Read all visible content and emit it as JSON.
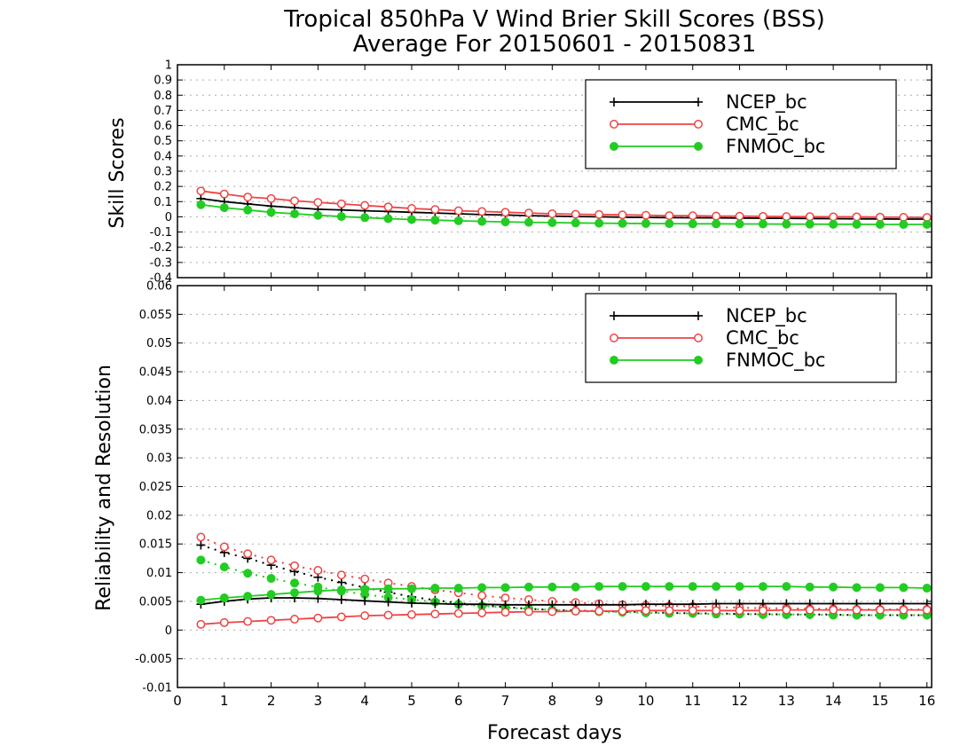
{
  "title_line1": "Tropical 850hPa V Wind Brier Skill Scores (BSS)",
  "title_line2": "Average For 20150601 - 20150831",
  "xlabel": "Forecast days",
  "colors": {
    "NCEP_bc": "#000000",
    "CMC_bc": "#ee4444",
    "FNMOC_bc": "#22cc22"
  },
  "chart_data": [
    {
      "type": "line",
      "title": "Tropical 850hPa V Wind Brier Skill Scores (BSS)",
      "ylabel": "Skill Scores",
      "xlim": [
        0,
        16.1
      ],
      "ylim": [
        -0.4,
        1
      ],
      "grid": true,
      "legend_position": "top-right",
      "x_ticks": [
        "0",
        "1",
        "2",
        "3",
        "4",
        "5",
        "6",
        "7",
        "8",
        "9",
        "10",
        "11",
        "12",
        "13",
        "14",
        "15",
        "16"
      ],
      "y_ticks": [
        "-0.4",
        "-0.3",
        "-0.2",
        "-0.1",
        "0",
        "0.1",
        "0.2",
        "0.3",
        "0.4",
        "0.5",
        "0.6",
        "0.7",
        "0.8",
        "0.9",
        "1"
      ],
      "x": [
        0.5,
        1,
        1.5,
        2,
        2.5,
        3,
        3.5,
        4,
        4.5,
        5,
        5.5,
        6,
        6.5,
        7,
        7.5,
        8,
        8.5,
        9,
        9.5,
        10,
        10.5,
        11,
        11.5,
        12,
        12.5,
        13,
        13.5,
        14,
        14.5,
        15,
        15.5,
        16
      ],
      "series": [
        {
          "name": "NCEP_bc",
          "marker": "plus",
          "style": "solid",
          "values": [
            0.12,
            0.1,
            0.085,
            0.07,
            0.06,
            0.05,
            0.045,
            0.04,
            0.035,
            0.03,
            0.025,
            0.02,
            0.015,
            0.012,
            0.008,
            0.005,
            0.002,
            0,
            -0.002,
            -0.004,
            -0.005,
            -0.006,
            -0.007,
            -0.008,
            -0.009,
            -0.01,
            -0.011,
            -0.012,
            -0.013,
            -0.014,
            -0.015,
            -0.015
          ]
        },
        {
          "name": "CMC_bc",
          "marker": "open-circle",
          "style": "solid",
          "values": [
            0.17,
            0.15,
            0.13,
            0.12,
            0.105,
            0.095,
            0.085,
            0.075,
            0.065,
            0.055,
            0.048,
            0.04,
            0.035,
            0.03,
            0.025,
            0.02,
            0.017,
            0.015,
            0.013,
            0.01,
            0.008,
            0.007,
            0.005,
            0.004,
            0.003,
            0.002,
            0.001,
            0,
            0,
            -0.002,
            -0.003,
            -0.004
          ]
        },
        {
          "name": "FNMOC_bc",
          "marker": "filled-circle",
          "style": "solid",
          "values": [
            0.08,
            0.06,
            0.045,
            0.03,
            0.02,
            0.01,
            0.002,
            -0.005,
            -0.012,
            -0.018,
            -0.022,
            -0.026,
            -0.03,
            -0.033,
            -0.036,
            -0.038,
            -0.04,
            -0.042,
            -0.043,
            -0.044,
            -0.045,
            -0.046,
            -0.046,
            -0.047,
            -0.047,
            -0.048,
            -0.048,
            -0.049,
            -0.049,
            -0.05,
            -0.05,
            -0.05
          ]
        }
      ]
    },
    {
      "type": "line",
      "ylabel": "Reliability and Resolution",
      "xlabel": "Forecast days",
      "xlim": [
        0,
        16.1
      ],
      "ylim": [
        -0.01,
        0.06
      ],
      "grid": true,
      "legend_position": "top-right",
      "x_ticks": [
        "0",
        "1",
        "2",
        "3",
        "4",
        "5",
        "6",
        "7",
        "8",
        "9",
        "10",
        "11",
        "12",
        "13",
        "14",
        "15",
        "16"
      ],
      "y_ticks": [
        "-0.01",
        "-0.005",
        "0",
        "0.005",
        "0.01",
        "0.015",
        "0.02",
        "0.025",
        "0.03",
        "0.035",
        "0.04",
        "0.045",
        "0.05",
        "0.055",
        "0.06"
      ],
      "x": [
        0.5,
        1,
        1.5,
        2,
        2.5,
        3,
        3.5,
        4,
        4.5,
        5,
        5.5,
        6,
        6.5,
        7,
        7.5,
        8,
        8.5,
        9,
        9.5,
        10,
        10.5,
        11,
        11.5,
        12,
        12.5,
        13,
        13.5,
        14,
        14.5,
        15,
        15.5,
        16
      ],
      "series": [
        {
          "name": "NCEP_bc",
          "quantity": "Reliability",
          "marker": "plus",
          "style": "dotted",
          "values": [
            0.0148,
            0.0135,
            0.0125,
            0.0113,
            0.0102,
            0.0092,
            0.0083,
            0.0074,
            0.0066,
            0.0058,
            0.0052,
            0.0047,
            0.0043,
            0.004,
            0.0037,
            0.0035,
            0.0034,
            0.0033,
            0.0032,
            0.0031,
            0.003,
            0.0029,
            0.0029,
            0.0028,
            0.0028,
            0.0027,
            0.0027,
            0.0027,
            0.0026,
            0.0026,
            0.0026,
            0.0026
          ]
        },
        {
          "name": "CMC_bc",
          "quantity": "Reliability",
          "marker": "open-circle",
          "style": "dotted",
          "values": [
            0.0162,
            0.0145,
            0.0133,
            0.0122,
            0.0112,
            0.0104,
            0.0096,
            0.0089,
            0.0082,
            0.0076,
            0.007,
            0.0065,
            0.006,
            0.0056,
            0.0053,
            0.005,
            0.0048,
            0.0046,
            0.0044,
            0.0043,
            0.0042,
            0.0041,
            0.004,
            0.0039,
            0.0038,
            0.0038,
            0.0037,
            0.0037,
            0.0036,
            0.0036,
            0.0036,
            0.0036
          ]
        },
        {
          "name": "FNMOC_bc",
          "quantity": "Reliability",
          "marker": "filled-circle",
          "style": "dotted",
          "values": [
            0.0122,
            0.011,
            0.0099,
            0.009,
            0.0082,
            0.0075,
            0.0068,
            0.0062,
            0.0057,
            0.0053,
            0.0049,
            0.0045,
            0.0042,
            0.0039,
            0.0037,
            0.0035,
            0.0033,
            0.0032,
            0.0031,
            0.003,
            0.0029,
            0.0029,
            0.0028,
            0.0028,
            0.0027,
            0.0027,
            0.0027,
            0.0026,
            0.0026,
            0.0026,
            0.0026,
            0.0026
          ]
        },
        {
          "name": "NCEP_bc",
          "quantity": "Resolution",
          "marker": "plus",
          "style": "solid",
          "values": [
            0.0045,
            0.005,
            0.0054,
            0.0056,
            0.0056,
            0.0055,
            0.0053,
            0.0051,
            0.0049,
            0.0047,
            0.0046,
            0.0045,
            0.0045,
            0.0044,
            0.0044,
            0.0044,
            0.0044,
            0.0044,
            0.0044,
            0.0045,
            0.0045,
            0.0045,
            0.0046,
            0.0046,
            0.0046,
            0.0046,
            0.0046,
            0.0046,
            0.0046,
            0.0046,
            0.0046,
            0.0046
          ]
        },
        {
          "name": "CMC_bc",
          "quantity": "Resolution",
          "marker": "open-circle",
          "style": "solid",
          "values": [
            0.001,
            0.0013,
            0.0015,
            0.0017,
            0.0019,
            0.0021,
            0.0023,
            0.0025,
            0.0026,
            0.0027,
            0.0028,
            0.0029,
            0.003,
            0.0031,
            0.0032,
            0.0032,
            0.0033,
            0.0033,
            0.0033,
            0.0034,
            0.0034,
            0.0034,
            0.0034,
            0.0034,
            0.0034,
            0.0035,
            0.0035,
            0.0035,
            0.0035,
            0.0035,
            0.0035,
            0.0035
          ]
        },
        {
          "name": "FNMOC_bc",
          "quantity": "Resolution",
          "marker": "filled-circle",
          "style": "solid",
          "values": [
            0.0052,
            0.0056,
            0.0059,
            0.0062,
            0.0065,
            0.0068,
            0.007,
            0.0071,
            0.0072,
            0.0072,
            0.0073,
            0.0073,
            0.0074,
            0.0074,
            0.0075,
            0.0075,
            0.0075,
            0.0076,
            0.0076,
            0.0076,
            0.0076,
            0.0076,
            0.0076,
            0.0076,
            0.0076,
            0.0076,
            0.0075,
            0.0075,
            0.0074,
            0.0074,
            0.0074,
            0.0073
          ]
        }
      ]
    }
  ]
}
